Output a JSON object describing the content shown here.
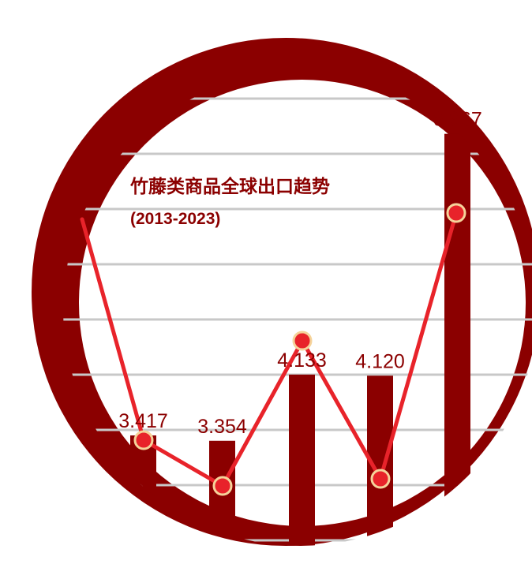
{
  "chart_data": {
    "type": "bar",
    "title": "竹藤类商品全球出口趋势",
    "subtitle": "(2013-2023)",
    "values": [
      3.417,
      3.354,
      4.133,
      4.12,
      6.967
    ],
    "value_labels": [
      "3.417",
      "3.354",
      "4.133",
      "4.120",
      "6.967"
    ],
    "line_overlay": true,
    "colors": {
      "bar": "#8b0000",
      "ring": "#8b0000",
      "line": "#e8232a",
      "marker_fill": "#e8232a",
      "marker_stroke": "#f5d39a",
      "label": "#8b0000",
      "grid": "#c8c8c8"
    }
  }
}
